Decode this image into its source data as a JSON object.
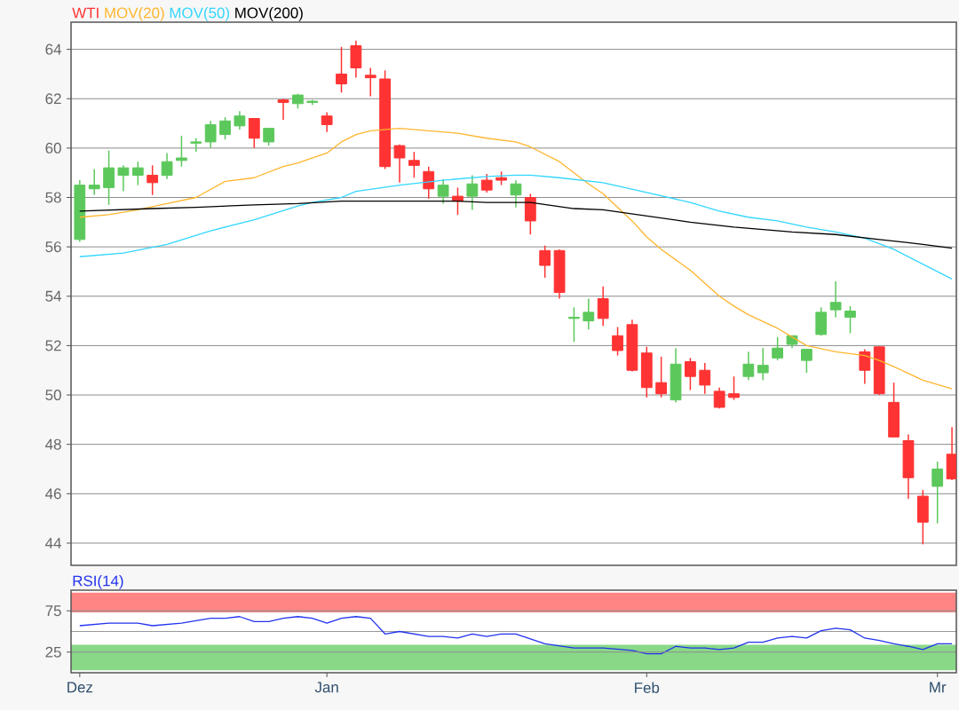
{
  "chart_data": [
    {
      "type": "candlestick",
      "categories": [
        null,
        null,
        null,
        null,
        null,
        null,
        null,
        null,
        null,
        null,
        null,
        null,
        null,
        null,
        null,
        null,
        null,
        null,
        null,
        null,
        null,
        null,
        null,
        null,
        null,
        null,
        null,
        null,
        null,
        null,
        null,
        null,
        null,
        null,
        null,
        null,
        null,
        null,
        null,
        null,
        null,
        null,
        null,
        null,
        null,
        null,
        null,
        null,
        null,
        null,
        null,
        null,
        null,
        null,
        null,
        null,
        null,
        null,
        null,
        null,
        null
      ],
      "ylim": [
        43.1,
        65.1
      ],
      "yticks": [
        44,
        46,
        48,
        50,
        52,
        54,
        56,
        58,
        60,
        62,
        64
      ],
      "grid": "y",
      "legend": "top left",
      "tick_labels": "y",
      "series": [
        {
          "name": "WTI",
          "type": "candlestick",
          "color": "#ff3333",
          "colors": [
            "#5cc85c",
            "#5cc85c",
            "#5cc85c",
            "#5cc85c",
            "#5cc85c",
            "#ff3333",
            "#5cc85c",
            "#5cc85c",
            "#5cc85c",
            "#5cc85c",
            "#5cc85c",
            "#5cc85c",
            "#ff3333",
            "#5cc85c",
            "#ff3333",
            "#5cc85c",
            "#5cc85c",
            "#ff3333",
            "#ff3333",
            "#ff3333",
            "#ff3333",
            "#ff3333",
            "#ff3333",
            "#ff3333",
            "#ff3333",
            "#5cc85c",
            "#ff3333",
            "#5cc85c",
            "#ff3333",
            "#ff3333",
            "#5cc85c",
            "#ff3333",
            "#ff3333",
            "#ff3333",
            "#5cc85c",
            "#5cc85c",
            "#ff3333",
            "#ff3333",
            "#ff3333",
            "#ff3333",
            "#ff3333",
            "#5cc85c",
            "#ff3333",
            "#ff3333",
            "#ff3333",
            "#ff3333",
            "#5cc85c",
            "#5cc85c",
            "#5cc85c",
            "#5cc85c",
            "#5cc85c",
            "#5cc85c",
            "#5cc85c",
            "#5cc85c",
            "#ff3333",
            "#ff3333",
            "#ff3333",
            "#ff3333",
            "#ff3333",
            "#5cc85c",
            "#ff3333"
          ],
          "ohlc": [
            [
              56.3,
              58.7,
              56.2,
              58.5
            ],
            [
              58.35,
              59.15,
              58.1,
              58.5
            ],
            [
              58.4,
              59.9,
              57.7,
              59.2
            ],
            [
              58.9,
              59.3,
              58.25,
              59.2
            ],
            [
              58.9,
              59.45,
              58.5,
              59.2
            ],
            [
              58.9,
              59.3,
              58.1,
              58.6
            ],
            [
              58.9,
              59.8,
              58.75,
              59.45
            ],
            [
              59.5,
              60.5,
              59.25,
              59.6
            ],
            [
              60.2,
              60.4,
              59.85,
              60.25
            ],
            [
              60.25,
              61.1,
              60.0,
              60.95
            ],
            [
              60.55,
              61.25,
              60.35,
              61.1
            ],
            [
              60.9,
              61.5,
              60.75,
              61.3
            ],
            [
              61.2,
              61.2,
              60.0,
              60.4
            ],
            [
              60.25,
              60.8,
              60.1,
              60.8
            ],
            [
              61.95,
              62.0,
              61.15,
              61.85
            ],
            [
              61.8,
              62.2,
              61.6,
              62.15
            ],
            [
              61.85,
              61.95,
              61.75,
              61.9
            ],
            [
              61.3,
              61.45,
              60.65,
              60.95
            ],
            [
              63.0,
              64.1,
              62.25,
              62.6
            ],
            [
              64.15,
              64.35,
              62.85,
              63.25
            ],
            [
              62.95,
              63.25,
              62.1,
              62.85
            ],
            [
              62.8,
              63.15,
              59.15,
              59.25
            ],
            [
              60.1,
              60.15,
              58.6,
              59.6
            ],
            [
              59.5,
              59.85,
              58.8,
              59.3
            ],
            [
              59.05,
              59.25,
              57.95,
              58.35
            ],
            [
              58.05,
              58.75,
              57.75,
              58.5
            ],
            [
              58.05,
              58.4,
              57.3,
              57.85
            ],
            [
              58.05,
              58.9,
              57.5,
              58.55
            ],
            [
              58.7,
              58.95,
              58.2,
              58.3
            ],
            [
              58.8,
              59.05,
              58.5,
              58.7
            ],
            [
              58.1,
              58.7,
              57.6,
              58.55
            ],
            [
              58.0,
              58.15,
              56.5,
              57.05
            ],
            [
              55.85,
              56.05,
              54.75,
              55.25
            ],
            [
              55.85,
              55.9,
              53.9,
              54.15
            ],
            [
              53.1,
              53.55,
              52.15,
              53.15
            ],
            [
              53.0,
              53.9,
              52.65,
              53.35
            ],
            [
              53.9,
              54.4,
              52.8,
              53.1
            ],
            [
              52.4,
              52.75,
              51.6,
              51.8
            ],
            [
              52.85,
              53.05,
              50.95,
              51.0
            ],
            [
              51.7,
              51.95,
              49.9,
              50.3
            ],
            [
              50.5,
              51.55,
              49.9,
              50.05
            ],
            [
              49.8,
              51.9,
              49.7,
              51.25
            ],
            [
              51.35,
              51.5,
              50.2,
              50.75
            ],
            [
              51.0,
              51.3,
              50.05,
              50.4
            ],
            [
              50.15,
              50.3,
              49.45,
              49.5
            ],
            [
              50.05,
              50.75,
              49.8,
              49.9
            ],
            [
              50.75,
              51.75,
              50.6,
              51.25
            ],
            [
              50.9,
              51.9,
              50.6,
              51.2
            ],
            [
              51.5,
              52.35,
              51.4,
              51.9
            ],
            [
              52.05,
              52.4,
              51.9,
              52.4
            ],
            [
              51.4,
              51.85,
              50.9,
              51.85
            ],
            [
              52.45,
              53.55,
              52.4,
              53.35
            ],
            [
              53.45,
              54.6,
              53.15,
              53.75
            ],
            [
              53.15,
              53.6,
              52.5,
              53.4
            ],
            [
              51.75,
              51.85,
              50.45,
              51.0
            ],
            [
              51.95,
              51.95,
              50.0,
              50.05
            ],
            [
              49.7,
              50.5,
              48.3,
              48.3
            ],
            [
              48.15,
              48.4,
              45.8,
              46.65
            ],
            [
              45.9,
              46.15,
              43.95,
              44.85
            ],
            [
              46.3,
              47.3,
              44.8,
              47.0
            ],
            [
              47.6,
              48.7,
              46.55,
              46.6
            ]
          ]
        },
        {
          "name": "MOV(20)",
          "type": "line",
          "color": "#ffb52e",
          "values": [
            57.2,
            null,
            57.3,
            null,
            57.5,
            null,
            57.75,
            null,
            58.0,
            null,
            58.65,
            null,
            58.8,
            null,
            59.25,
            59.4,
            null,
            59.8,
            60.25,
            60.55,
            60.7,
            null,
            60.8,
            null,
            60.7,
            null,
            60.6,
            null,
            60.4,
            null,
            60.25,
            60.05,
            null,
            59.45,
            null,
            58.55,
            58.15,
            null,
            57.05,
            56.4,
            55.9,
            null,
            55.05,
            null,
            54.0,
            53.6,
            53.25,
            null,
            52.7,
            null,
            52.0,
            null,
            51.75,
            null,
            51.6,
            51.4,
            51.15,
            null,
            50.6,
            null,
            50.25
          ]
        },
        {
          "name": "MOV(50)",
          "type": "line",
          "color": "#33d6ff",
          "values": [
            55.6,
            null,
            null,
            55.75,
            null,
            null,
            56.1,
            null,
            null,
            56.65,
            null,
            null,
            57.1,
            null,
            null,
            57.65,
            57.8,
            null,
            58.0,
            58.25,
            null,
            null,
            58.5,
            null,
            null,
            58.7,
            null,
            null,
            58.85,
            null,
            58.9,
            58.9,
            null,
            58.8,
            null,
            null,
            58.6,
            null,
            null,
            58.2,
            null,
            null,
            57.8,
            null,
            57.45,
            null,
            57.2,
            null,
            57.05,
            null,
            56.8,
            null,
            56.6,
            null,
            56.35,
            null,
            55.9,
            null,
            55.3,
            null,
            54.7
          ]
        },
        {
          "name": "MOV(200)",
          "type": "line",
          "color": "#000000",
          "values": [
            57.45,
            null,
            null,
            null,
            null,
            57.55,
            null,
            null,
            57.6,
            null,
            null,
            null,
            57.7,
            null,
            null,
            57.75,
            null,
            null,
            57.85,
            null,
            null,
            null,
            57.85,
            null,
            null,
            null,
            57.85,
            null,
            57.8,
            null,
            57.8,
            57.8,
            null,
            null,
            57.55,
            null,
            57.5,
            null,
            null,
            57.25,
            null,
            null,
            57.0,
            null,
            null,
            56.8,
            56.75,
            null,
            null,
            56.6,
            null,
            null,
            56.5,
            null,
            null,
            56.3,
            null,
            null,
            56.1,
            null,
            55.95
          ]
        }
      ]
    },
    {
      "type": "line",
      "categories": [
        "Dez",
        null,
        null,
        null,
        null,
        null,
        null,
        null,
        null,
        null,
        null,
        null,
        null,
        null,
        null,
        null,
        null,
        "Jan",
        null,
        null,
        null,
        null,
        null,
        null,
        null,
        null,
        null,
        null,
        null,
        null,
        null,
        null,
        null,
        null,
        null,
        null,
        null,
        null,
        null,
        "Feb",
        null,
        null,
        null,
        null,
        null,
        null,
        null,
        null,
        null,
        null,
        null,
        null,
        null,
        null,
        null,
        null,
        null,
        null,
        null,
        "Mr",
        null
      ],
      "ylim": [
        0,
        100
      ],
      "yticks": [
        25,
        75
      ],
      "grid": "y",
      "legend": "top left",
      "bands": [
        {
          "axis": "y",
          "from": 73,
          "to": 97,
          "color": "#ff8585"
        },
        {
          "axis": "y",
          "from": 3,
          "to": 34,
          "color": "#88d888"
        }
      ],
      "ref_lines": [
        {
          "axis": "y",
          "value": 50,
          "color": "#999999"
        }
      ],
      "series": [
        {
          "name": "RSI(14)",
          "color": "#2233ee",
          "values": [
            57,
            null,
            60,
            null,
            60,
            57,
            null,
            60,
            null,
            66,
            66,
            68,
            62,
            62,
            66,
            68,
            66,
            60,
            66,
            68,
            66,
            47,
            50,
            null,
            44,
            44,
            42,
            47,
            44,
            47,
            47,
            null,
            35,
            null,
            30,
            null,
            30,
            null,
            27,
            23,
            23,
            32,
            30,
            30,
            28,
            30,
            37,
            37,
            42,
            44,
            42,
            51,
            54,
            52,
            42,
            39,
            35,
            32,
            28,
            35,
            35
          ]
        }
      ]
    }
  ]
}
